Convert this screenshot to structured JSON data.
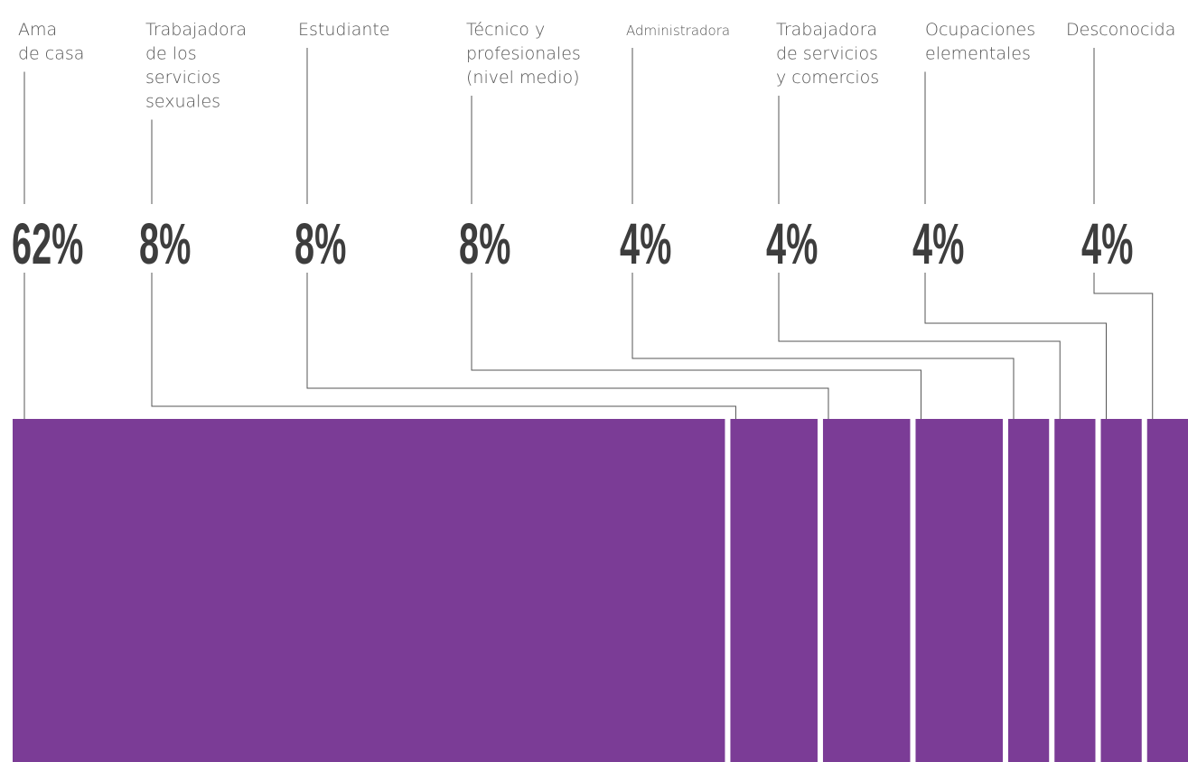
{
  "chart_data": {
    "type": "proportion-bar",
    "categories": [
      "Ama\nde casa",
      "Trabajadora\nde los\nservicios\nsexuales",
      "Estudiante",
      "Técnico y\nprofesionales\n(nivel medio)",
      "Administradora",
      "Trabajadora\nde servicios\ny comercios",
      "Ocupaciones\nelementales",
      "Desconocida"
    ],
    "values": [
      62,
      8,
      8,
      8,
      4,
      4,
      4,
      4
    ],
    "value_labels": [
      "62%",
      "8%",
      "8%",
      "8%",
      "4%",
      "4%",
      "4%",
      "4%"
    ],
    "color": "#7b3c96"
  }
}
